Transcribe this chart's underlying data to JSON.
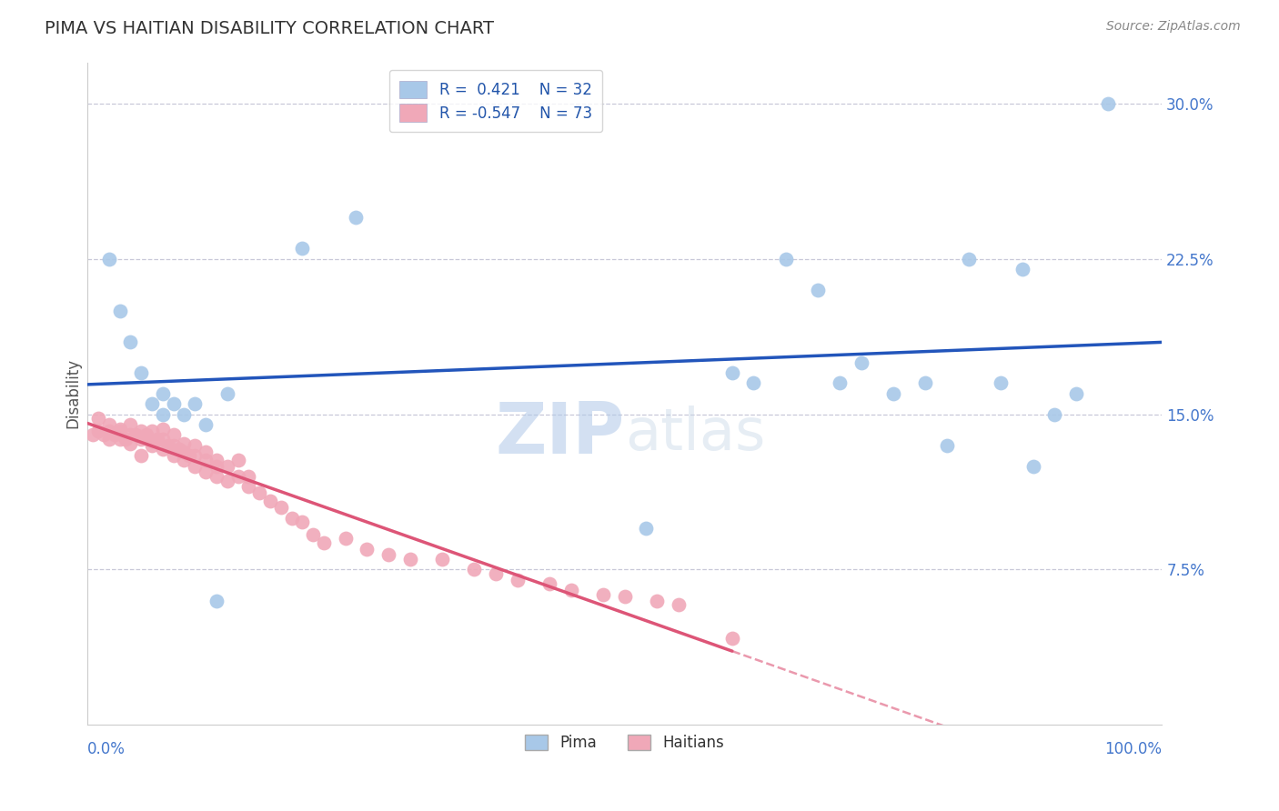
{
  "title": "PIMA VS HAITIAN DISABILITY CORRELATION CHART",
  "source": "Source: ZipAtlas.com",
  "ylabel": "Disability",
  "ylim": [
    0.0,
    0.32
  ],
  "xlim": [
    0.0,
    1.0
  ],
  "yticks": [
    0.075,
    0.15,
    0.225,
    0.3
  ],
  "ytick_labels": [
    "7.5%",
    "15.0%",
    "22.5%",
    "30.0%"
  ],
  "grid_color": "#c8c8d8",
  "bg_color": "#ffffff",
  "pima_color": "#a8c8e8",
  "pima_edge_color": "#a8c8e8",
  "haitian_color": "#f0a8b8",
  "haitian_edge_color": "#f0a8b8",
  "pima_line_color": "#2255bb",
  "haitian_line_color": "#dd5577",
  "pima_R": 0.421,
  "pima_N": 32,
  "haitian_R": -0.547,
  "haitian_N": 73,
  "watermark": "ZIPatlas",
  "pima_x": [
    0.02,
    0.03,
    0.04,
    0.05,
    0.06,
    0.07,
    0.07,
    0.08,
    0.09,
    0.1,
    0.11,
    0.12,
    0.13,
    0.2,
    0.25,
    0.52,
    0.6,
    0.62,
    0.65,
    0.68,
    0.7,
    0.72,
    0.75,
    0.78,
    0.8,
    0.82,
    0.85,
    0.87,
    0.88,
    0.9,
    0.92,
    0.95
  ],
  "pima_y": [
    0.225,
    0.2,
    0.185,
    0.17,
    0.155,
    0.15,
    0.16,
    0.155,
    0.15,
    0.155,
    0.145,
    0.06,
    0.16,
    0.23,
    0.245,
    0.095,
    0.17,
    0.165,
    0.225,
    0.21,
    0.165,
    0.175,
    0.16,
    0.165,
    0.135,
    0.225,
    0.165,
    0.22,
    0.125,
    0.15,
    0.16,
    0.3
  ],
  "haitian_x": [
    0.005,
    0.01,
    0.01,
    0.015,
    0.02,
    0.02,
    0.02,
    0.025,
    0.03,
    0.03,
    0.03,
    0.035,
    0.04,
    0.04,
    0.04,
    0.045,
    0.05,
    0.05,
    0.05,
    0.055,
    0.06,
    0.06,
    0.06,
    0.065,
    0.07,
    0.07,
    0.07,
    0.075,
    0.08,
    0.08,
    0.08,
    0.085,
    0.09,
    0.09,
    0.09,
    0.095,
    0.1,
    0.1,
    0.1,
    0.11,
    0.11,
    0.11,
    0.12,
    0.12,
    0.12,
    0.13,
    0.13,
    0.14,
    0.14,
    0.15,
    0.15,
    0.16,
    0.17,
    0.18,
    0.19,
    0.2,
    0.21,
    0.22,
    0.24,
    0.26,
    0.28,
    0.3,
    0.33,
    0.36,
    0.38,
    0.4,
    0.43,
    0.45,
    0.48,
    0.5,
    0.53,
    0.55,
    0.6
  ],
  "haitian_y": [
    0.14,
    0.142,
    0.148,
    0.14,
    0.142,
    0.145,
    0.138,
    0.14,
    0.143,
    0.138,
    0.142,
    0.138,
    0.136,
    0.14,
    0.145,
    0.14,
    0.138,
    0.142,
    0.13,
    0.14,
    0.137,
    0.142,
    0.135,
    0.138,
    0.133,
    0.138,
    0.143,
    0.135,
    0.13,
    0.135,
    0.14,
    0.133,
    0.128,
    0.132,
    0.136,
    0.13,
    0.125,
    0.13,
    0.135,
    0.122,
    0.128,
    0.132,
    0.12,
    0.125,
    0.128,
    0.118,
    0.125,
    0.12,
    0.128,
    0.115,
    0.12,
    0.112,
    0.108,
    0.105,
    0.1,
    0.098,
    0.092,
    0.088,
    0.09,
    0.085,
    0.082,
    0.08,
    0.08,
    0.075,
    0.073,
    0.07,
    0.068,
    0.065,
    0.063,
    0.062,
    0.06,
    0.058,
    0.042
  ]
}
